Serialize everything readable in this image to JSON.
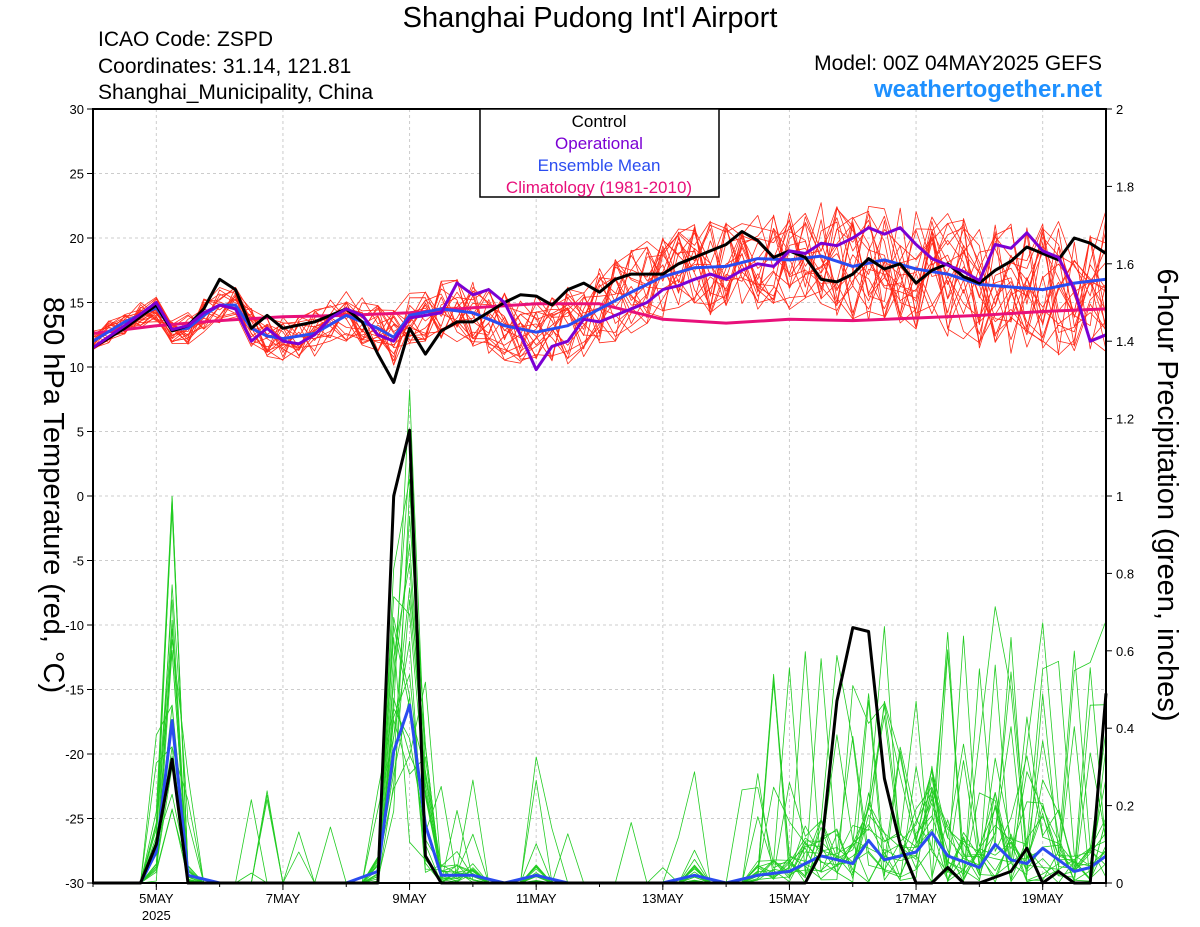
{
  "header": {
    "title": "Shanghai Pudong Int'l Airport",
    "icao": "ICAO Code: ZSPD",
    "coords": "Coordinates: 31.14, 121.81",
    "location": "Shanghai_Municipality, China",
    "model": "Model: 00Z 04MAY2025 GEFS",
    "site": "weathertogether.net"
  },
  "colors": {
    "control": "#000000",
    "operational": "#7b00d4",
    "ensemble_mean": "#2a4cf0",
    "climatology": "#e8107a",
    "members_temp": "#ff2a1a",
    "members_precip": "#22cc22",
    "site": "#1e90ff"
  },
  "chart_data": {
    "type": "line",
    "left_axis": {
      "label": "850 hPa Temperature (red, °C)",
      "range": [
        -30,
        30
      ],
      "ticks": [
        "30",
        "25",
        "20",
        "15",
        "10",
        "5",
        "0",
        "-5",
        "-10",
        "-15",
        "-20",
        "-25",
        "-30"
      ]
    },
    "right_axis": {
      "label": "6-hour Precipitation (green, inches)",
      "range": [
        0,
        2
      ],
      "ticks": [
        "2",
        "1.8",
        "1.6",
        "1.4",
        "1.2",
        "1",
        "0.8",
        "0.6",
        "0.4",
        "0.2",
        "0"
      ]
    },
    "x_axis": {
      "start_day": 4,
      "end_day": 20,
      "ticks": [
        {
          "day": 5,
          "label": "5MAY",
          "sub": "2025"
        },
        {
          "day": 7,
          "label": "7MAY",
          "sub": ""
        },
        {
          "day": 9,
          "label": "9MAY",
          "sub": ""
        },
        {
          "day": 11,
          "label": "11MAY",
          "sub": ""
        },
        {
          "day": 13,
          "label": "13MAY",
          "sub": ""
        },
        {
          "day": 15,
          "label": "15MAY",
          "sub": ""
        },
        {
          "day": 17,
          "label": "17MAY",
          "sub": ""
        },
        {
          "day": 19,
          "label": "19MAY",
          "sub": ""
        }
      ]
    },
    "legend": {
      "placement": "top-center",
      "entries": [
        {
          "name": "Control",
          "color": "#000000"
        },
        {
          "name": "Operational",
          "color": "#7b00d4"
        },
        {
          "name": "Ensemble Mean",
          "color": "#2a4cf0"
        },
        {
          "name": "Climatology (1981-2010)",
          "color": "#e8107a"
        }
      ]
    },
    "temperature": {
      "control": [
        [
          4,
          11.5
        ],
        [
          4.5,
          13
        ],
        [
          5,
          14.8
        ],
        [
          5.25,
          12.8
        ],
        [
          5.5,
          13.2
        ],
        [
          5.75,
          14.5
        ],
        [
          6,
          16.8
        ],
        [
          6.25,
          16
        ],
        [
          6.5,
          13
        ],
        [
          6.75,
          14
        ],
        [
          7,
          13
        ],
        [
          7.5,
          13.5
        ],
        [
          8,
          14.5
        ],
        [
          8.25,
          13.5
        ],
        [
          8.5,
          11
        ],
        [
          8.75,
          8.8
        ],
        [
          9,
          13
        ],
        [
          9.25,
          11
        ],
        [
          9.5,
          12.8
        ],
        [
          9.75,
          13.5
        ],
        [
          10,
          13.5
        ],
        [
          10.5,
          15
        ],
        [
          10.75,
          15.6
        ],
        [
          11,
          15.5
        ],
        [
          11.25,
          14.8
        ],
        [
          11.5,
          16
        ],
        [
          11.75,
          16.5
        ],
        [
          12,
          15.8
        ],
        [
          12.25,
          16.8
        ],
        [
          12.5,
          17.2
        ],
        [
          13,
          17.2
        ],
        [
          13.25,
          18
        ],
        [
          13.5,
          18.5
        ],
        [
          13.75,
          19
        ],
        [
          14,
          19.5
        ],
        [
          14.25,
          20.5
        ],
        [
          14.5,
          19.8
        ],
        [
          14.75,
          18.5
        ],
        [
          15,
          19
        ],
        [
          15.25,
          18.5
        ],
        [
          15.5,
          16.8
        ],
        [
          15.75,
          16.6
        ],
        [
          16,
          17.2
        ],
        [
          16.25,
          18.4
        ],
        [
          16.5,
          17.6
        ],
        [
          16.75,
          18
        ],
        [
          17,
          16.5
        ],
        [
          17.25,
          17.5
        ],
        [
          17.5,
          18
        ],
        [
          17.75,
          17
        ],
        [
          18,
          16.5
        ],
        [
          18.25,
          17.5
        ],
        [
          18.5,
          18.2
        ],
        [
          18.75,
          19.3
        ],
        [
          19,
          18.8
        ],
        [
          19.25,
          18.3
        ],
        [
          19.5,
          20
        ],
        [
          19.75,
          19.6
        ],
        [
          20,
          18.8
        ]
      ],
      "operational": [
        [
          4,
          11.5
        ],
        [
          4.5,
          13.2
        ],
        [
          5,
          15
        ],
        [
          5.25,
          12.9
        ],
        [
          5.5,
          13.2
        ],
        [
          5.75,
          14.2
        ],
        [
          6,
          14.8
        ],
        [
          6.25,
          14.5
        ],
        [
          6.5,
          12
        ],
        [
          6.75,
          13
        ],
        [
          7,
          12
        ],
        [
          7.25,
          11.8
        ],
        [
          7.5,
          12.5
        ],
        [
          7.75,
          13.8
        ],
        [
          8,
          14.5
        ],
        [
          8.25,
          14
        ],
        [
          8.5,
          12.5
        ],
        [
          8.75,
          12
        ],
        [
          9,
          13.8
        ],
        [
          9.25,
          14
        ],
        [
          9.5,
          14.2
        ],
        [
          9.75,
          16.5
        ],
        [
          10,
          15.6
        ],
        [
          10.25,
          16
        ],
        [
          10.5,
          15
        ],
        [
          10.75,
          12.5
        ],
        [
          11,
          9.8
        ],
        [
          11.25,
          11.6
        ],
        [
          11.5,
          12
        ],
        [
          11.75,
          13.7
        ],
        [
          12,
          13.5
        ],
        [
          12.5,
          14.5
        ],
        [
          12.75,
          15
        ],
        [
          13,
          16
        ],
        [
          13.25,
          16.3
        ],
        [
          13.5,
          16.8
        ],
        [
          13.75,
          17.2
        ],
        [
          14,
          16.8
        ],
        [
          14.25,
          17.5
        ],
        [
          14.5,
          18
        ],
        [
          14.75,
          17.8
        ],
        [
          15,
          19
        ],
        [
          15.25,
          18.8
        ],
        [
          15.5,
          19.6
        ],
        [
          15.75,
          19.4
        ],
        [
          16,
          20
        ],
        [
          16.25,
          20.8
        ],
        [
          16.5,
          20.3
        ],
        [
          16.75,
          20.8
        ],
        [
          17,
          19.5
        ],
        [
          17.25,
          18.4
        ],
        [
          17.5,
          17.9
        ],
        [
          17.75,
          17.4
        ],
        [
          18,
          16.7
        ],
        [
          18.25,
          19.5
        ],
        [
          18.5,
          19.2
        ],
        [
          18.75,
          20.4
        ],
        [
          19,
          19
        ],
        [
          19.25,
          18.5
        ],
        [
          19.5,
          16
        ],
        [
          19.75,
          12
        ],
        [
          20,
          12.5
        ]
      ],
      "ensemble_mean": [
        [
          4,
          12
        ],
        [
          4.5,
          13.5
        ],
        [
          5,
          14.6
        ],
        [
          5.25,
          12.9
        ],
        [
          5.5,
          13
        ],
        [
          5.75,
          14
        ],
        [
          6,
          14.8
        ],
        [
          6.25,
          14.8
        ],
        [
          6.5,
          13
        ],
        [
          6.75,
          12.4
        ],
        [
          7,
          12.2
        ],
        [
          7.5,
          12.6
        ],
        [
          8,
          14
        ],
        [
          8.5,
          13
        ],
        [
          8.75,
          12.3
        ],
        [
          9,
          14
        ],
        [
          9.5,
          14.5
        ],
        [
          10,
          14.2
        ],
        [
          10.5,
          13.2
        ],
        [
          11,
          12.7
        ],
        [
          11.5,
          13.2
        ],
        [
          12,
          14.5
        ],
        [
          12.5,
          15.8
        ],
        [
          13,
          17
        ],
        [
          13.5,
          17.7
        ],
        [
          14,
          17.8
        ],
        [
          14.5,
          18.4
        ],
        [
          15,
          18.3
        ],
        [
          15.5,
          18.6
        ],
        [
          16,
          17.8
        ],
        [
          16.5,
          18.3
        ],
        [
          17,
          17.6
        ],
        [
          17.5,
          17.2
        ],
        [
          18,
          16.4
        ],
        [
          18.5,
          16.2
        ],
        [
          19,
          16
        ],
        [
          19.5,
          16.5
        ],
        [
          20,
          16.8
        ]
      ],
      "climatology": [
        [
          4,
          12.6
        ],
        [
          5,
          13.2
        ],
        [
          6,
          13.6
        ],
        [
          7,
          13.9
        ],
        [
          8,
          14
        ],
        [
          9,
          14.2
        ],
        [
          10,
          14.6
        ],
        [
          11,
          14.9
        ],
        [
          12,
          14.9
        ],
        [
          13,
          13.7
        ],
        [
          14,
          13.4
        ],
        [
          15,
          13.7
        ],
        [
          16,
          13.6
        ],
        [
          17,
          13.8
        ],
        [
          18,
          14
        ],
        [
          19,
          14.3
        ],
        [
          20,
          14.5
        ]
      ]
    },
    "precipitation": {
      "control": [
        [
          4,
          0
        ],
        [
          4.75,
          0
        ],
        [
          5,
          0.1
        ],
        [
          5.25,
          0.32
        ],
        [
          5.5,
          0
        ],
        [
          6,
          0
        ],
        [
          8.5,
          0
        ],
        [
          8.75,
          1
        ],
        [
          9,
          1.17
        ],
        [
          9.25,
          0.07
        ],
        [
          9.5,
          0
        ],
        [
          15.25,
          0
        ],
        [
          15.5,
          0.08
        ],
        [
          15.75,
          0.47
        ],
        [
          16,
          0.66
        ],
        [
          16.25,
          0.65
        ],
        [
          16.5,
          0.27
        ],
        [
          16.75,
          0.1
        ],
        [
          17,
          0
        ],
        [
          17.25,
          0
        ],
        [
          17.5,
          0.04
        ],
        [
          17.75,
          0
        ],
        [
          18,
          0
        ],
        [
          18.5,
          0.03
        ],
        [
          18.75,
          0.09
        ],
        [
          19,
          0
        ],
        [
          19.25,
          0.03
        ],
        [
          19.5,
          0
        ],
        [
          19.75,
          0
        ],
        [
          20,
          0.49
        ]
      ],
      "ensemble_mean": [
        [
          4,
          0
        ],
        [
          4.75,
          0
        ],
        [
          5,
          0.08
        ],
        [
          5.25,
          0.42
        ],
        [
          5.5,
          0.02
        ],
        [
          6,
          0
        ],
        [
          8,
          0
        ],
        [
          8.5,
          0.03
        ],
        [
          8.75,
          0.34
        ],
        [
          9,
          0.46
        ],
        [
          9.25,
          0.15
        ],
        [
          9.5,
          0.02
        ],
        [
          10,
          0.02
        ],
        [
          10.5,
          0
        ],
        [
          11,
          0.02
        ],
        [
          11.5,
          0
        ],
        [
          13,
          0
        ],
        [
          13.5,
          0.02
        ],
        [
          14,
          0
        ],
        [
          14.5,
          0.02
        ],
        [
          15,
          0.03
        ],
        [
          15.5,
          0.07
        ],
        [
          16,
          0.05
        ],
        [
          16.25,
          0.11
        ],
        [
          16.5,
          0.06
        ],
        [
          17,
          0.08
        ],
        [
          17.25,
          0.13
        ],
        [
          17.5,
          0.07
        ],
        [
          18,
          0.04
        ],
        [
          18.25,
          0.1
        ],
        [
          18.5,
          0.06
        ],
        [
          18.75,
          0.05
        ],
        [
          19,
          0.09
        ],
        [
          19.5,
          0.03
        ],
        [
          19.75,
          0.04
        ],
        [
          20,
          0.07
        ]
      ]
    }
  }
}
